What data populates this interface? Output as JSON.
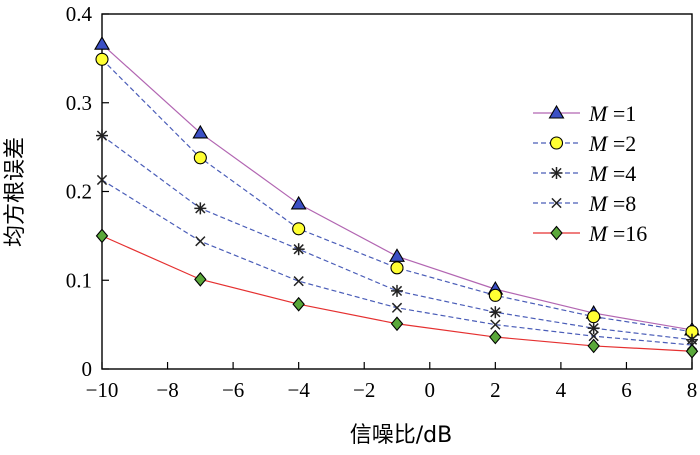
{
  "chart_data": {
    "type": "line",
    "title": "",
    "xlabel": "信噪比/dB",
    "ylabel": "均方根误差",
    "xlim": [
      -10,
      8
    ],
    "ylim": [
      0,
      0.4
    ],
    "x_ticks": [
      -10,
      -8,
      -6,
      -4,
      -2,
      0,
      2,
      4,
      6,
      8
    ],
    "x_tick_labels": [
      "−10",
      "−8",
      "−6",
      "−4",
      "−2",
      "0",
      "2",
      "4",
      "6",
      "8"
    ],
    "y_ticks": [
      0,
      0.1,
      0.2,
      0.3,
      0.4
    ],
    "y_tick_labels": [
      "0",
      "0.1",
      "0.2",
      "0.3",
      "0.4"
    ],
    "grid": false,
    "legend_position": "right",
    "x": [
      -10,
      -7,
      -4,
      -1,
      2,
      5,
      8
    ],
    "series": [
      {
        "name": "M =1",
        "var": "M",
        "eq": " =1",
        "marker": "triangle",
        "line_color": "#b266b2",
        "dash": "solid",
        "marker_color": "#3b4fc4",
        "values": [
          0.366,
          0.266,
          0.186,
          0.127,
          0.09,
          0.063,
          0.044
        ]
      },
      {
        "name": "M =2",
        "var": "M",
        "eq": " =2",
        "marker": "circle",
        "line_color": "#4a5db8",
        "dash": "dashed",
        "marker_color": "#ffff33",
        "values": [
          0.349,
          0.238,
          0.158,
          0.114,
          0.083,
          0.059,
          0.042
        ]
      },
      {
        "name": "M =4",
        "var": "M",
        "eq": " =4",
        "marker": "asterisk",
        "line_color": "#4a5db8",
        "dash": "dashed",
        "marker_color": "#222222",
        "values": [
          0.263,
          0.181,
          0.135,
          0.088,
          0.064,
          0.046,
          0.033
        ]
      },
      {
        "name": "M =8",
        "var": "M",
        "eq": " =8",
        "marker": "x",
        "line_color": "#4a5db8",
        "dash": "dashed",
        "marker_color": "#222222",
        "values": [
          0.213,
          0.144,
          0.099,
          0.069,
          0.05,
          0.037,
          0.027
        ]
      },
      {
        "name": "M =16",
        "var": "M",
        "eq": " =16",
        "marker": "diamond",
        "line_color": "#e53030",
        "dash": "solid",
        "marker_color": "#5aa83a",
        "values": [
          0.15,
          0.101,
          0.073,
          0.051,
          0.036,
          0.026,
          0.02
        ]
      }
    ]
  }
}
